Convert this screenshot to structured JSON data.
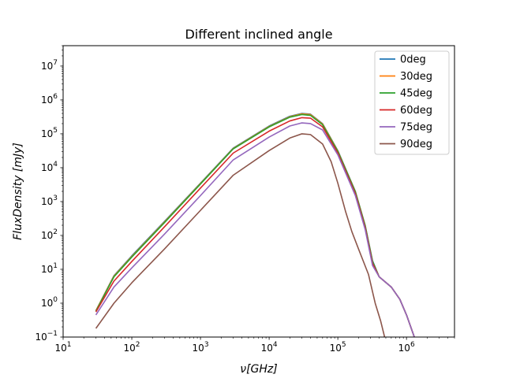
{
  "chart_data": {
    "type": "line",
    "title": "Different inclined angle",
    "xlabel": "ν[GHz]",
    "ylabel": "FluxDensity [mJy]",
    "xscale": "log",
    "yscale": "log",
    "xlim": [
      10,
      5000000
    ],
    "ylim": [
      0.1,
      40000000
    ],
    "grid": false,
    "legend_position": "top-right",
    "x_ticks": [
      {
        "value": 10,
        "base": "10",
        "exp": "1"
      },
      {
        "value": 100,
        "base": "10",
        "exp": "2"
      },
      {
        "value": 1000,
        "base": "10",
        "exp": "3"
      },
      {
        "value": 10000,
        "base": "10",
        "exp": "4"
      },
      {
        "value": 100000,
        "base": "10",
        "exp": "5"
      },
      {
        "value": 1000000,
        "base": "10",
        "exp": "6"
      }
    ],
    "y_ticks": [
      {
        "value": 0.1,
        "base": "10",
        "exp": "−1"
      },
      {
        "value": 1,
        "base": "10",
        "exp": "0"
      },
      {
        "value": 10,
        "base": "10",
        "exp": "1"
      },
      {
        "value": 100,
        "base": "10",
        "exp": "2"
      },
      {
        "value": 1000,
        "base": "10",
        "exp": "3"
      },
      {
        "value": 10000,
        "base": "10",
        "exp": "4"
      },
      {
        "value": 100000,
        "base": "10",
        "exp": "5"
      },
      {
        "value": 1000000,
        "base": "10",
        "exp": "6"
      },
      {
        "value": 10000000,
        "base": "10",
        "exp": "7"
      }
    ],
    "series": [
      {
        "name": "0deg",
        "color": "#1f77b4",
        "points": [
          [
            30,
            0.6
          ],
          [
            55,
            6.5
          ],
          [
            100,
            25
          ],
          [
            300,
            260
          ],
          [
            1000,
            3500
          ],
          [
            3000,
            38000
          ],
          [
            10000,
            170000
          ],
          [
            20000,
            330000
          ],
          [
            30000,
            400000
          ],
          [
            40000,
            380000
          ],
          [
            60000,
            200000
          ],
          [
            100000,
            32000
          ],
          [
            180000,
            2000
          ],
          [
            250000,
            200
          ],
          [
            320000,
            18
          ],
          [
            400000,
            6
          ],
          [
            600000,
            3
          ],
          [
            800000,
            1.3
          ],
          [
            1000000,
            0.45
          ],
          [
            1300000,
            0.1
          ]
        ]
      },
      {
        "name": "30deg",
        "color": "#ff7f0e",
        "points": [
          [
            30,
            0.6
          ],
          [
            55,
            6.3
          ],
          [
            100,
            24
          ],
          [
            300,
            250
          ],
          [
            1000,
            3400
          ],
          [
            3000,
            37000
          ],
          [
            10000,
            165000
          ],
          [
            20000,
            320000
          ],
          [
            30000,
            390000
          ],
          [
            40000,
            370000
          ],
          [
            60000,
            195000
          ],
          [
            100000,
            31000
          ],
          [
            180000,
            1950
          ],
          [
            250000,
            195
          ],
          [
            320000,
            17
          ],
          [
            400000,
            6
          ],
          [
            600000,
            3
          ],
          [
            800000,
            1.3
          ],
          [
            1000000,
            0.45
          ],
          [
            1300000,
            0.1
          ]
        ]
      },
      {
        "name": "45deg",
        "color": "#2ca02c",
        "points": [
          [
            30,
            0.58
          ],
          [
            55,
            6
          ],
          [
            100,
            23
          ],
          [
            300,
            240
          ],
          [
            1000,
            3300
          ],
          [
            3000,
            36000
          ],
          [
            10000,
            160000
          ],
          [
            20000,
            310000
          ],
          [
            30000,
            370000
          ],
          [
            40000,
            350000
          ],
          [
            60000,
            185000
          ],
          [
            100000,
            30000
          ],
          [
            180000,
            1900
          ],
          [
            250000,
            190
          ],
          [
            320000,
            17
          ],
          [
            400000,
            6
          ],
          [
            600000,
            3
          ],
          [
            800000,
            1.3
          ],
          [
            1000000,
            0.45
          ],
          [
            1300000,
            0.1
          ]
        ]
      },
      {
        "name": "60deg",
        "color": "#d62728",
        "points": [
          [
            30,
            0.55
          ],
          [
            55,
            4.5
          ],
          [
            100,
            17
          ],
          [
            300,
            180
          ],
          [
            1000,
            2500
          ],
          [
            3000,
            27000
          ],
          [
            10000,
            120000
          ],
          [
            20000,
            240000
          ],
          [
            30000,
            300000
          ],
          [
            40000,
            290000
          ],
          [
            60000,
            160000
          ],
          [
            100000,
            27000
          ],
          [
            180000,
            1700
          ],
          [
            250000,
            170
          ],
          [
            320000,
            15
          ],
          [
            400000,
            6
          ],
          [
            600000,
            3
          ],
          [
            800000,
            1.3
          ],
          [
            1000000,
            0.45
          ],
          [
            1300000,
            0.1
          ]
        ]
      },
      {
        "name": "75deg",
        "color": "#9467bd",
        "points": [
          [
            30,
            0.45
          ],
          [
            55,
            3
          ],
          [
            100,
            11
          ],
          [
            300,
            110
          ],
          [
            1000,
            1500
          ],
          [
            3000,
            17000
          ],
          [
            10000,
            80000
          ],
          [
            20000,
            170000
          ],
          [
            30000,
            210000
          ],
          [
            40000,
            200000
          ],
          [
            60000,
            130000
          ],
          [
            100000,
            24000
          ],
          [
            180000,
            1500
          ],
          [
            250000,
            150
          ],
          [
            320000,
            13
          ],
          [
            400000,
            6
          ],
          [
            600000,
            3
          ],
          [
            800000,
            1.3
          ],
          [
            1000000,
            0.45
          ],
          [
            1300000,
            0.1
          ]
        ]
      },
      {
        "name": "90deg",
        "color": "#8c564b",
        "points": [
          [
            30,
            0.18
          ],
          [
            55,
            1
          ],
          [
            100,
            4
          ],
          [
            300,
            40
          ],
          [
            1000,
            550
          ],
          [
            3000,
            6000
          ],
          [
            10000,
            32000
          ],
          [
            20000,
            75000
          ],
          [
            30000,
            100000
          ],
          [
            40000,
            95000
          ],
          [
            60000,
            50000
          ],
          [
            80000,
            15000
          ],
          [
            100000,
            3500
          ],
          [
            130000,
            500
          ],
          [
            160000,
            130
          ],
          [
            200000,
            40
          ],
          [
            280000,
            7
          ],
          [
            350000,
            1
          ],
          [
            420000,
            0.3
          ],
          [
            480000,
            0.1
          ]
        ]
      }
    ]
  }
}
